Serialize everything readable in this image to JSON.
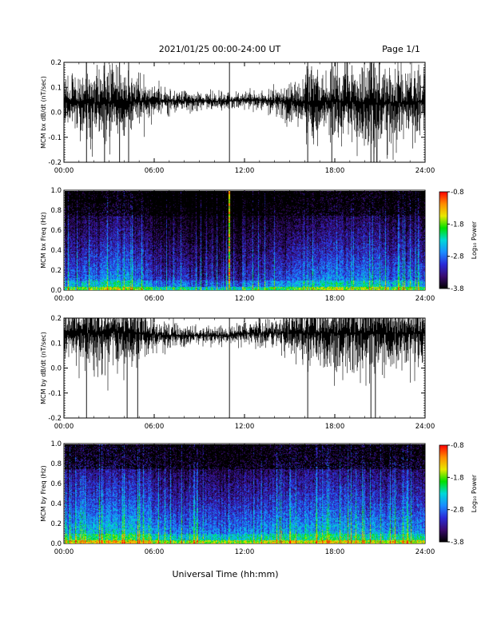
{
  "header": {
    "title": "2021/01/25  00:00-24:00 UT",
    "page": "Page 1/1"
  },
  "footer": {
    "xlabel": "Universal Time (hh:mm)"
  },
  "colorbar": {
    "label": "Log₁₀ Power",
    "ticks": [
      "-0.8",
      "-1.8",
      "-2.8",
      "-3.8"
    ],
    "tick_values": [
      -0.8,
      -1.8,
      -2.8,
      -3.8
    ],
    "range": [
      -3.8,
      -0.8
    ],
    "colormap": [
      "#000000",
      "#3a0a6e",
      "#2a2ad8",
      "#1a8cff",
      "#00d8d8",
      "#00e000",
      "#e8e800",
      "#ff8c00",
      "#ff0000"
    ]
  },
  "chart_data": [
    {
      "type": "line",
      "ylabel": "MCM bx dB/dt (nT/sec)",
      "ylim": [
        -0.2,
        0.2
      ],
      "yticks": [
        "0.2",
        "0.1",
        "0.0",
        "-0.1",
        "-0.2"
      ],
      "ytick_values": [
        0.2,
        0.1,
        0.0,
        -0.1,
        -0.2
      ],
      "xlim": [
        0,
        24
      ],
      "xticks": [
        "00:00",
        "06:00",
        "12:00",
        "18:00",
        "24:00"
      ],
      "series": [
        {
          "x": [
            0,
            1,
            2,
            3,
            4,
            5,
            6,
            7,
            8,
            9,
            10,
            11,
            12,
            13,
            14,
            15,
            16,
            17,
            18,
            19,
            20,
            21,
            22,
            23,
            24
          ],
          "mean": [
            0.04,
            0.04,
            0.04,
            0.04,
            0.04,
            0.045,
            0.045,
            0.045,
            0.045,
            0.045,
            0.045,
            0.045,
            0.05,
            0.05,
            0.045,
            0.045,
            0.04,
            0.04,
            0.045,
            0.04,
            0.04,
            0.035,
            0.04,
            0.04,
            0.04
          ],
          "amplitude": [
            0.07,
            0.08,
            0.09,
            0.09,
            0.08,
            0.06,
            0.035,
            0.03,
            0.025,
            0.02,
            0.02,
            0.02,
            0.02,
            0.02,
            0.03,
            0.05,
            0.08,
            0.09,
            0.1,
            0.08,
            0.12,
            0.1,
            0.09,
            0.08,
            0.07
          ]
        }
      ],
      "spikes_hours": [
        1.5,
        2.7,
        3.7,
        4.3,
        11.0,
        16.2,
        17.8,
        20.4,
        20.6
      ]
    },
    {
      "type": "heatmap",
      "ylabel": "MCM bx Freq (Hz)",
      "ylim": [
        0.0,
        1.0
      ],
      "yticks": [
        "1.0",
        "0.8",
        "0.6",
        "0.4",
        "0.2",
        "0.0"
      ],
      "ytick_values": [
        1.0,
        0.8,
        0.6,
        0.4,
        0.2,
        0.0
      ],
      "xlim": [
        0,
        24
      ],
      "xticks": [
        "00:00",
        "06:00",
        "12:00",
        "18:00",
        "24:00"
      ],
      "activity": [
        0.5,
        0.55,
        0.6,
        0.65,
        0.65,
        0.6,
        0.45,
        0.4,
        0.4,
        0.35,
        0.35,
        0.35,
        0.4,
        0.4,
        0.45,
        0.5,
        0.55,
        0.6,
        0.65,
        0.6,
        0.6,
        0.6,
        0.55,
        0.55,
        0.5
      ],
      "spikes_hours": [
        10.9
      ]
    },
    {
      "type": "line",
      "ylabel": "MCM by dB/dt (nT/sec)",
      "ylim": [
        -0.2,
        0.2
      ],
      "yticks": [
        "0.2",
        "0.1",
        "0.0",
        "-0.1",
        "-0.2"
      ],
      "ytick_values": [
        0.2,
        0.1,
        0.0,
        -0.1,
        -0.2
      ],
      "xlim": [
        0,
        24
      ],
      "xticks": [
        "00:00",
        "06:00",
        "12:00",
        "18:00",
        "24:00"
      ],
      "series": [
        {
          "x": [
            0,
            1,
            2,
            3,
            4,
            5,
            6,
            7,
            8,
            9,
            10,
            11,
            12,
            13,
            14,
            15,
            16,
            17,
            18,
            19,
            20,
            21,
            22,
            23,
            24
          ],
          "mean": [
            0.14,
            0.14,
            0.14,
            0.15,
            0.14,
            0.14,
            0.135,
            0.13,
            0.13,
            0.13,
            0.13,
            0.13,
            0.14,
            0.14,
            0.14,
            0.14,
            0.14,
            0.14,
            0.14,
            0.14,
            0.14,
            0.14,
            0.14,
            0.14,
            0.14
          ],
          "amplitude": [
            0.07,
            0.08,
            0.09,
            0.09,
            0.09,
            0.07,
            0.04,
            0.03,
            0.025,
            0.02,
            0.02,
            0.02,
            0.025,
            0.03,
            0.04,
            0.05,
            0.07,
            0.08,
            0.09,
            0.09,
            0.1,
            0.1,
            0.09,
            0.08,
            0.07
          ]
        }
      ],
      "spikes_hours": [
        1.5,
        4.2,
        4.9,
        11.0,
        16.2,
        20.4,
        20.7
      ]
    },
    {
      "type": "heatmap",
      "ylabel": "MCM by Freq (Hz)",
      "ylim": [
        0.0,
        1.0
      ],
      "yticks": [
        "1.0",
        "0.8",
        "0.6",
        "0.4",
        "0.2",
        "0.0"
      ],
      "ytick_values": [
        1.0,
        0.8,
        0.6,
        0.4,
        0.2,
        0.0
      ],
      "xlim": [
        0,
        24
      ],
      "xticks": [
        "00:00",
        "06:00",
        "12:00",
        "18:00",
        "24:00"
      ],
      "activity": [
        0.65,
        0.7,
        0.75,
        0.8,
        0.8,
        0.75,
        0.65,
        0.6,
        0.6,
        0.6,
        0.6,
        0.6,
        0.65,
        0.65,
        0.7,
        0.7,
        0.7,
        0.75,
        0.75,
        0.7,
        0.7,
        0.7,
        0.7,
        0.7,
        0.65
      ],
      "spikes_hours": []
    }
  ]
}
